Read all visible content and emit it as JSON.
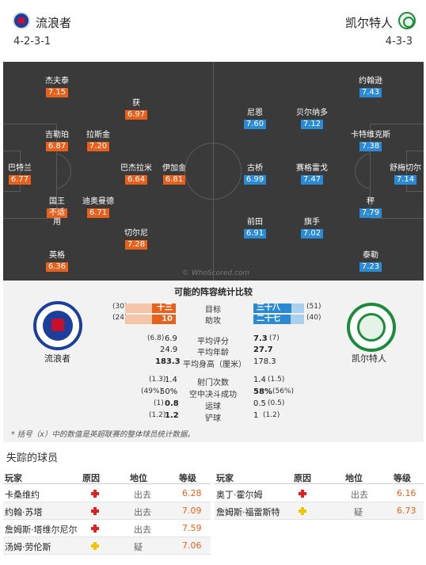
{
  "header": {
    "home_team": "流浪者",
    "away_team": "凯尔特人",
    "home_formation": "4-2-3-1",
    "away_formation": "4-3-3"
  },
  "pitch": {
    "home_players": [
      {
        "name": "巴特兰",
        "rating": "6.77"
      },
      {
        "name": "杰夫泰",
        "rating": "7.15"
      },
      {
        "name": "吉勒珀",
        "rating": "6.87"
      },
      {
        "name": "国王",
        "rating": "不适",
        "sub": "用"
      },
      {
        "name": "英格",
        "rating": "6.36"
      },
      {
        "name": "拉斯金",
        "rating": "7.20"
      },
      {
        "name": "迪奥曼德",
        "rating": "6.71"
      },
      {
        "name": "获",
        "rating": "6.97"
      },
      {
        "name": "巴杰拉米",
        "rating": "6.64"
      },
      {
        "name": "切尔尼",
        "rating": "7.28"
      },
      {
        "name": "伊加金",
        "rating": "6.81"
      }
    ],
    "away_players": [
      {
        "name": "舒梅切尔",
        "rating": "7.14"
      },
      {
        "name": "约翰逊",
        "rating": "7.43"
      },
      {
        "name": "卡特维克斯",
        "rating": "7.38"
      },
      {
        "name": "秤",
        "rating": "7.79"
      },
      {
        "name": "泰勒",
        "rating": "7.23"
      },
      {
        "name": "贝尔纳多",
        "rating": "7.12"
      },
      {
        "name": "赛格雷戈",
        "rating": "7.47"
      },
      {
        "name": "旗手",
        "rating": "7.02"
      },
      {
        "name": "尼恩",
        "rating": "7.60"
      },
      {
        "name": "古桥",
        "rating": "6.99"
      },
      {
        "name": "前田",
        "rating": "6.91"
      }
    ],
    "watermark": "© WhoScored.com"
  },
  "comparison": {
    "title": "可能的阵容统计比较",
    "home_crest_label": "流浪者",
    "away_crest_label": "凯尔特人",
    "goals": {
      "label": "目标",
      "home_small": "(30)",
      "home_val": "十三",
      "away_val": "三十八",
      "away_small": "(51)",
      "home_frac": 0.25,
      "away_frac": 0.75
    },
    "assists": {
      "label": "助攻",
      "home_small": "(24)",
      "home_val": "10",
      "away_val": "二十七",
      "away_small": "(40)",
      "home_frac": 0.27,
      "away_frac": 0.73
    },
    "rows": [
      {
        "label": "平均评分",
        "home_small": "(6.8)",
        "home_val": "6.9",
        "away_val": "7.3",
        "away_small": "(7)",
        "away_green": true
      },
      {
        "label": "平均年龄",
        "home_small": "",
        "home_val": "24.9",
        "away_val": "27.7",
        "away_small": "",
        "away_green": true
      },
      {
        "label": "平均身高（厘米）",
        "home_small": "",
        "home_val": "183.3",
        "away_val": "178.3",
        "away_small": "",
        "home_green": true
      },
      {
        "label": "射门次数",
        "home_small": "(1.3)",
        "home_val": "1.4",
        "away_val": "1.4",
        "away_small": "(1.5)"
      },
      {
        "label": "空中决斗成功",
        "home_small": "(49%)",
        "home_val": "50%",
        "away_val": "58%",
        "away_small": "(56%)",
        "away_green": true
      },
      {
        "label": "运球",
        "home_small": "(1)",
        "home_val": "0.8",
        "away_val": "0.5",
        "away_small": "(0.5)",
        "home_green": true
      },
      {
        "label": "铲球",
        "home_small": "(1.2)",
        "home_val": "1.2",
        "away_val": "1",
        "away_small": "(1.2)",
        "home_green": true
      }
    ],
    "footnote": "* 括号（x）中的数值是英超联赛的整体球员统计数据。"
  },
  "missing": {
    "title": "失踪的球员",
    "headers": {
      "player": "玩家",
      "reason": "原因",
      "status": "地位",
      "rating": "等级"
    },
    "home": [
      {
        "name": "卡桑维约",
        "reason": "injury",
        "status": "出去",
        "rating": "6.28"
      },
      {
        "name": "约翰·苏塔",
        "reason": "injury",
        "status": "出去",
        "rating": "7.09"
      },
      {
        "name": "詹姆斯·塔维尔尼尔",
        "reason": "injury",
        "status": "出去",
        "rating": "7.59"
      },
      {
        "name": "汤姆·劳伦斯",
        "reason": "doubt",
        "status": "疑",
        "rating": "7.06"
      }
    ],
    "away": [
      {
        "name": "奥丁·霍尔姆",
        "reason": "injury",
        "status": "出去",
        "rating": "6.16"
      },
      {
        "name": "詹姆斯·福雷斯特",
        "reason": "doubt",
        "status": "疑",
        "rating": "6.73"
      }
    ]
  }
}
